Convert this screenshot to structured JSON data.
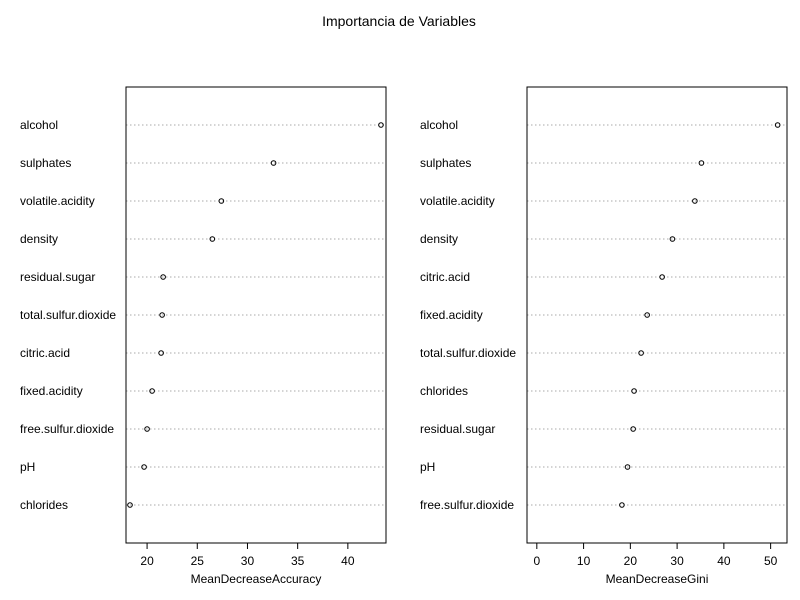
{
  "title": "Importancia de Variables",
  "colors": {
    "grid": "#aaaaaa",
    "frame": "#000000",
    "point": "#000000"
  },
  "chart_data": [
    {
      "type": "dotchart",
      "xlabel": "MeanDecreaseAccuracy",
      "xlim": [
        17.9,
        43.8
      ],
      "xticks": [
        20,
        25,
        30,
        35,
        40
      ],
      "xtick_labels": [
        "20",
        "25",
        "30",
        "35",
        "40"
      ],
      "grid": "horizontal dotted",
      "categories": [
        "alcohol",
        "sulphates",
        "volatile.acidity",
        "density",
        "residual.sugar",
        "total.sulfur.dioxide",
        "citric.acid",
        "fixed.acidity",
        "free.sulfur.dioxide",
        "pH",
        "chlorides"
      ],
      "values": [
        43.3,
        32.6,
        27.4,
        26.5,
        21.6,
        21.5,
        21.4,
        20.5,
        20.0,
        19.7,
        18.3
      ]
    },
    {
      "type": "dotchart",
      "xlabel": "MeanDecreaseGini",
      "xlim": [
        -2.1,
        53.5
      ],
      "xticks": [
        0,
        10,
        20,
        30,
        40,
        50
      ],
      "xtick_labels": [
        "0",
        "10",
        "20",
        "30",
        "40",
        "50"
      ],
      "grid": "horizontal dotted",
      "categories": [
        "alcohol",
        "sulphates",
        "volatile.acidity",
        "density",
        "citric.acid",
        "fixed.acidity",
        "total.sulfur.dioxide",
        "chlorides",
        "residual.sugar",
        "pH",
        "free.sulfur.dioxide"
      ],
      "values": [
        51.5,
        35.2,
        33.8,
        29.0,
        26.8,
        23.6,
        22.3,
        20.8,
        20.6,
        19.4,
        18.2
      ]
    }
  ]
}
